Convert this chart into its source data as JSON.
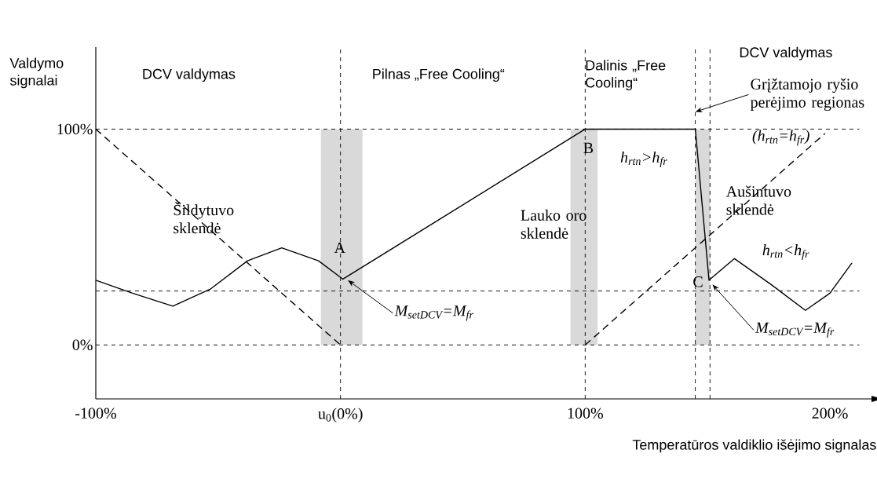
{
  "chart_data": {
    "type": "line",
    "xlabel": "Temperatūros valdiklio išėjimo signalas",
    "ylabel": "Valdymo signalai",
    "xlim": [
      -100,
      217
    ],
    "ylim": [
      -25,
      138
    ],
    "xticks": [
      {
        "value": -100,
        "label": "-100%"
      },
      {
        "value": 0,
        "label": "u$_{0}$(0%)"
      },
      {
        "value": 100,
        "label": "100%"
      },
      {
        "value": 200,
        "label": "200%"
      }
    ],
    "yticks": [
      {
        "value": 0,
        "label": "0%"
      },
      {
        "value": 100,
        "label": "100%"
      }
    ],
    "grid": false,
    "legend": false,
    "marker": "none",
    "series": [
      {
        "name": "Šildytuvo sklendė",
        "color": "#000000",
        "line_style": "dashed",
        "x": [
          -100,
          0
        ],
        "values": [
          100,
          0
        ]
      },
      {
        "name": "Lauko oro sklendė",
        "color": "#000000",
        "line_style": "solid",
        "x": [
          -100,
          -85,
          -68.5,
          -53,
          -38,
          -24,
          -9,
          1,
          100,
          145,
          150.6,
          161,
          176,
          190,
          200,
          209
        ],
        "values": [
          30,
          24,
          18,
          26,
          39,
          45,
          39,
          30.5,
          100,
          100,
          30,
          40,
          28,
          16,
          24,
          38
        ]
      },
      {
        "name": "Aušintuvo sklendė",
        "color": "#000000",
        "line_style": "dashed",
        "x": [
          100,
          198
        ],
        "values": [
          0,
          98
        ]
      }
    ],
    "ref_lines": [
      {
        "axis": "y",
        "value": 100,
        "label": null
      },
      {
        "axis": "y",
        "value": 25,
        "label": null
      },
      {
        "axis": "y",
        "value": 0,
        "label": null
      },
      {
        "axis": "x",
        "value": 0,
        "label": null
      },
      {
        "axis": "x",
        "value": 100,
        "label": null
      },
      {
        "axis": "x",
        "value": 145,
        "label": null
      },
      {
        "axis": "x",
        "value": 151,
        "label": null
      }
    ],
    "bands": [
      {
        "axis": "x",
        "from": -8,
        "to": 9,
        "label": null,
        "color": "#d9d9d9"
      },
      {
        "axis": "x",
        "from": 94,
        "to": 105,
        "label": null,
        "color": "#d9d9d9"
      },
      {
        "axis": "x",
        "from": 145,
        "to": 151,
        "label": null,
        "color": "#d9d9d9"
      }
    ],
    "annotations": [
      "DCV valdymas",
      "Pilnas „Free Cooling“",
      "Dalinis „Free Cooling“",
      "DCV valdymas",
      {
        "text": "Grįžtamojo ryšio perėjimo regionas",
        "x": 145,
        "y": 108
      },
      "(h$_{rtn}$=h$_{fr}$)",
      "h$_{rtn}$>h$_{fr}$",
      "h$_{rtn}$<h$_{fr}$",
      {
        "text": "A",
        "x": 1,
        "y": 30.5
      },
      {
        "text": "B",
        "x": 100,
        "y": 100
      },
      {
        "text": "C",
        "x": 150.6,
        "y": 30
      },
      {
        "text": "M$_{setDCV}$=M$_{fr}$",
        "x": 3,
        "y": 30
      },
      {
        "text": "M$_{setDCV}$=M$_{fr}$",
        "x": 152,
        "y": 28
      }
    ]
  }
}
